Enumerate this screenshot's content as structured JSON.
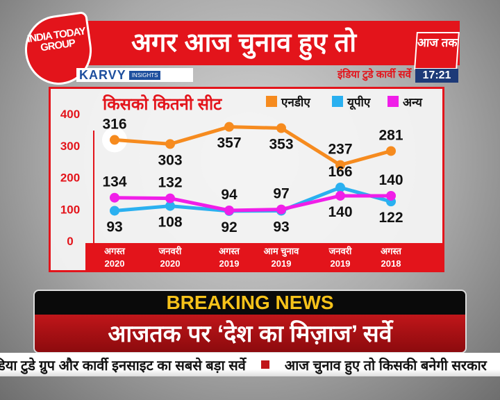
{
  "logos": {
    "india_today": "INDIA TODAY GROUP",
    "karvy": "KARVY",
    "karvy_insights": "INSIGHTS",
    "aajtak": "आज तक"
  },
  "header": {
    "title": "अगर आज चुनाव हुए तो",
    "survey": "इंडिया टुडे कार्वी सर्वे",
    "time": "17:21"
  },
  "chart_data": {
    "type": "line",
    "title": "किसको कितनी सीट",
    "categories": [
      "अगस्त 2020",
      "जनवरी 2020",
      "अगस्त 2019",
      "आम चुनाव 2019",
      "जनवरी 2019",
      "अगस्त 2018"
    ],
    "category_lines": [
      [
        "अगस्त",
        "2020"
      ],
      [
        "जनवरी",
        "2020"
      ],
      [
        "अगस्त",
        "2019"
      ],
      [
        "आम चुनाव",
        "2019"
      ],
      [
        "जनवरी",
        "2019"
      ],
      [
        "अगस्त",
        "2018"
      ]
    ],
    "yticks": [
      "0",
      "100",
      "200",
      "300",
      "400"
    ],
    "ylim": [
      0,
      400
    ],
    "legend_placement": "top-right",
    "series": [
      {
        "name": "एनडीए",
        "color": "#f68b1f",
        "values": [
          316,
          303,
          357,
          353,
          237,
          281
        ]
      },
      {
        "name": "यूपीए",
        "color": "#2ab0f0",
        "values": [
          93,
          108,
          92,
          93,
          166,
          122
        ]
      },
      {
        "name": "अन्य",
        "color": "#f01ee8",
        "values": [
          134,
          132,
          94,
          97,
          140,
          140
        ]
      }
    ]
  },
  "breaking": {
    "label": "BREAKING NEWS",
    "headline": "आजतक पर ‘देश का मिज़ाज’ सर्वे"
  },
  "ticker": {
    "items": [
      "इंडिया टुडे ग्रुप और कार्वी इनसाइट का सबसे बड़ा सर्वे",
      "आज चुनाव हुए तो किसकी बनेगी सरकार"
    ]
  }
}
